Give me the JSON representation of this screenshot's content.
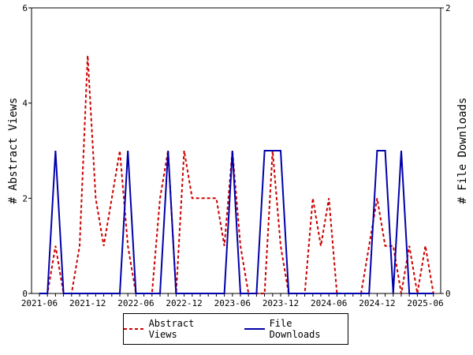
{
  "chart_data": {
    "type": "line",
    "title": "",
    "x": [
      "2021-06",
      "2021-07",
      "2021-08",
      "2021-09",
      "2021-10",
      "2021-11",
      "2021-12",
      "2022-01",
      "2022-02",
      "2022-03",
      "2022-04",
      "2022-05",
      "2022-06",
      "2022-07",
      "2022-08",
      "2022-09",
      "2022-10",
      "2022-11",
      "2022-12",
      "2023-01",
      "2023-02",
      "2023-03",
      "2023-04",
      "2023-05",
      "2023-06",
      "2023-07",
      "2023-08",
      "2023-09",
      "2023-10",
      "2023-11",
      "2023-12",
      "2024-01",
      "2024-02",
      "2024-03",
      "2024-04",
      "2024-05",
      "2024-06",
      "2024-07",
      "2024-08",
      "2024-09",
      "2024-10",
      "2024-11",
      "2024-12",
      "2025-01",
      "2025-02",
      "2025-03",
      "2025-04",
      "2025-05",
      "2025-06",
      "2025-07"
    ],
    "x_tick_labels": [
      "2021-06",
      "2021-12",
      "2022-06",
      "2022-12",
      "2023-06",
      "2023-12",
      "2024-06",
      "2024-12",
      "2025-06"
    ],
    "y_left": {
      "label": "# Abstract Views",
      "range": [
        0,
        6
      ],
      "ticks": [
        "0",
        "2",
        "4",
        "6"
      ]
    },
    "y_right": {
      "label": "# File Downloads",
      "range": [
        0,
        2
      ],
      "ticks": [
        "0",
        "2"
      ]
    },
    "series": [
      {
        "name": "Abstract Views",
        "axis": "left",
        "color": "#cc0000",
        "style": "dashed",
        "values": [
          0,
          0,
          1,
          0,
          0,
          1,
          5,
          2,
          1,
          2,
          3,
          1,
          0,
          0,
          0,
          2,
          3,
          0,
          3,
          2,
          2,
          2,
          2,
          1,
          3,
          1,
          0,
          0,
          0,
          3,
          1,
          0,
          0,
          0,
          2,
          1,
          2,
          0,
          0,
          0,
          0,
          1,
          2,
          1,
          1,
          0,
          1,
          0,
          1,
          0
        ]
      },
      {
        "name": "File Downloads",
        "axis": "right",
        "color": "#0000aa",
        "style": "solid",
        "values": [
          0,
          0,
          1,
          0,
          0,
          0,
          0,
          0,
          0,
          0,
          0,
          1,
          0,
          0,
          0,
          0,
          1,
          0,
          0,
          0,
          0,
          0,
          0,
          0,
          1,
          0,
          0,
          0,
          1,
          1,
          1,
          0,
          0,
          0,
          0,
          0,
          0,
          0,
          0,
          0,
          0,
          0,
          1,
          1,
          0,
          1,
          0,
          0,
          0,
          0
        ]
      }
    ],
    "legend_position": "bottom",
    "grid": false
  }
}
